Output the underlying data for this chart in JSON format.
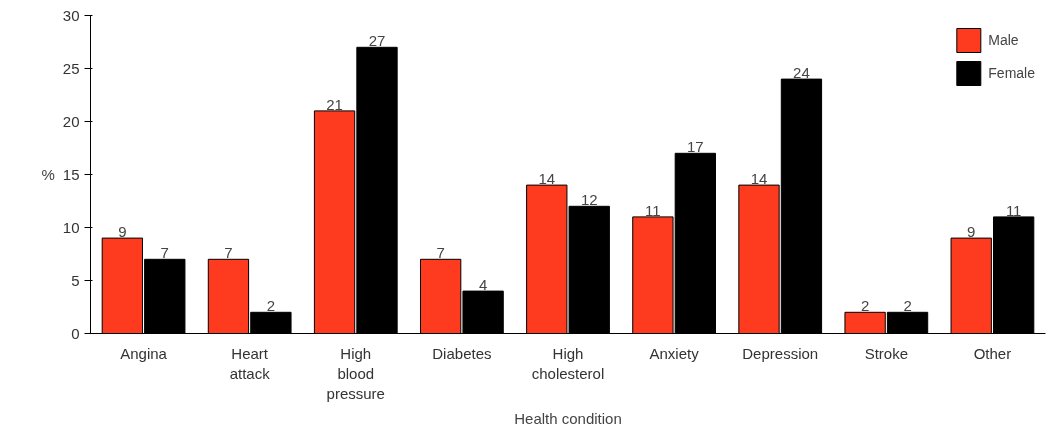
{
  "chart_data": {
    "type": "bar",
    "xlabel": "Health condition",
    "ylabel": "%",
    "categories": [
      "Angina",
      "Heart\nattack",
      "High\nblood\npressure",
      "Diabetes",
      "High\ncholesterol",
      "Anxiety",
      "Depression",
      "Stroke",
      "Other"
    ],
    "series": [
      {
        "name": "Male",
        "color": "#ff3b1f",
        "values": [
          9,
          7,
          21,
          7,
          14,
          11,
          14,
          2,
          9
        ]
      },
      {
        "name": "Female",
        "color": "#000000",
        "values": [
          7,
          2,
          27,
          4,
          12,
          17,
          24,
          2,
          11
        ]
      }
    ],
    "ylim": [
      0,
      30
    ],
    "yticks": [
      0,
      5,
      10,
      15,
      20,
      25,
      30
    ],
    "grid": false,
    "legend": "top right",
    "data_labels": true
  }
}
